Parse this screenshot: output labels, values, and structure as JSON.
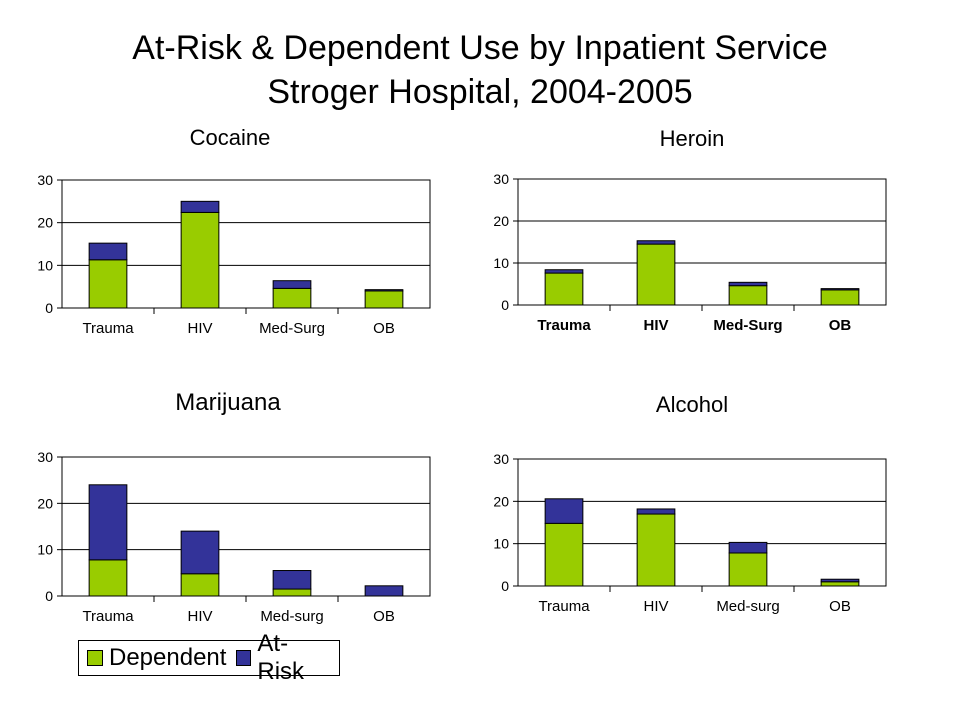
{
  "slide": {
    "title_line1": "At-Risk & Dependent Use by Inpatient Service",
    "title_line2": "Stroger Hospital, 2004-2005"
  },
  "colors": {
    "dependent": "#99cc00",
    "at_risk": "#333399",
    "grid": "#000000"
  },
  "legend": {
    "items": [
      {
        "label": "Dependent",
        "color": "#99cc00"
      },
      {
        "label": "At-Risk",
        "color": "#333399"
      }
    ]
  },
  "chart_data": [
    {
      "type": "bar",
      "stacked": true,
      "title": "Cocaine",
      "categories": [
        "Trauma",
        "HIV",
        "Med-Surg",
        "OB"
      ],
      "ylim": [
        0,
        30
      ],
      "yticks": [
        0,
        10,
        20,
        30
      ],
      "grid": true,
      "series": [
        {
          "name": "Dependent",
          "values": [
            11.3,
            22.4,
            4.6,
            4.0
          ]
        },
        {
          "name": "At-Risk",
          "values": [
            3.9,
            2.6,
            1.8,
            0.3
          ]
        }
      ]
    },
    {
      "type": "bar",
      "stacked": true,
      "title": "Heroin",
      "categories": [
        "Trauma",
        "HIV",
        "Med-Surg",
        "OB"
      ],
      "ylim": [
        0,
        30
      ],
      "yticks": [
        0,
        10,
        20,
        30
      ],
      "grid": true,
      "series": [
        {
          "name": "Dependent",
          "values": [
            7.6,
            14.5,
            4.6,
            3.6
          ]
        },
        {
          "name": "At-Risk",
          "values": [
            0.8,
            0.8,
            0.8,
            0.3
          ]
        }
      ]
    },
    {
      "type": "bar",
      "stacked": true,
      "title": "Marijuana",
      "categories": [
        "Trauma",
        "HIV",
        "Med-surg",
        "OB"
      ],
      "ylim": [
        0,
        30
      ],
      "yticks": [
        0,
        10,
        20,
        30
      ],
      "grid": true,
      "series": [
        {
          "name": "Dependent",
          "values": [
            7.8,
            4.8,
            1.5,
            0.0
          ]
        },
        {
          "name": "At-Risk",
          "values": [
            16.2,
            9.2,
            4.0,
            2.2
          ]
        }
      ]
    },
    {
      "type": "bar",
      "stacked": true,
      "title": "Alcohol",
      "categories": [
        "Trauma",
        "HIV",
        "Med-surg",
        "OB"
      ],
      "ylim": [
        0,
        30
      ],
      "yticks": [
        0,
        10,
        20,
        30
      ],
      "grid": true,
      "series": [
        {
          "name": "Dependent",
          "values": [
            14.8,
            17.0,
            7.8,
            1.0
          ]
        },
        {
          "name": "At-Risk",
          "values": [
            5.8,
            1.2,
            2.5,
            0.6
          ]
        }
      ]
    }
  ]
}
